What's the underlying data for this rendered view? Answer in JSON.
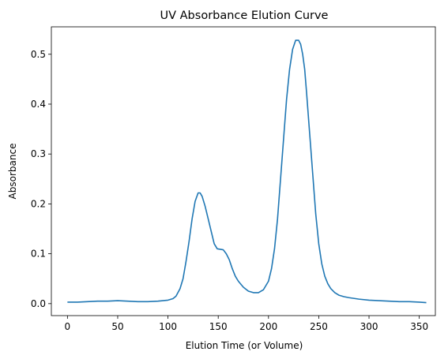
{
  "chart_data": {
    "type": "line",
    "title": "UV Absorbance Elution Curve",
    "xlabel": "Elution Time (or Volume)",
    "ylabel": "Absorbance",
    "xlim": [
      -16,
      366
    ],
    "ylim": [
      -0.024,
      0.555
    ],
    "xticks": [
      0,
      50,
      100,
      150,
      200,
      250,
      300,
      350
    ],
    "yticks": [
      0.0,
      0.1,
      0.2,
      0.3,
      0.4,
      0.5
    ],
    "ytick_labels": [
      "0.0",
      "0.1",
      "0.2",
      "0.3",
      "0.4",
      "0.5"
    ],
    "grid": false,
    "legend": "none",
    "series": [
      {
        "color": "#1f77b4",
        "x": [
          0,
          10,
          20,
          30,
          40,
          50,
          60,
          70,
          80,
          90,
          95,
          100,
          105,
          108,
          112,
          115,
          118,
          121,
          124,
          127,
          130,
          132,
          134,
          137,
          140,
          143,
          146,
          149,
          152,
          155,
          158,
          161,
          164,
          167,
          170,
          175,
          180,
          185,
          190,
          195,
          200,
          203,
          206,
          209,
          212,
          215,
          218,
          221,
          224,
          227,
          230,
          232,
          234,
          236,
          238,
          241,
          244,
          247,
          250,
          253,
          256,
          259,
          262,
          266,
          270,
          275,
          280,
          290,
          300,
          310,
          320,
          330,
          340,
          350,
          357
        ],
        "y": [
          0.003,
          0.003,
          0.004,
          0.005,
          0.005,
          0.006,
          0.005,
          0.004,
          0.004,
          0.005,
          0.006,
          0.007,
          0.01,
          0.015,
          0.03,
          0.05,
          0.085,
          0.125,
          0.17,
          0.205,
          0.222,
          0.222,
          0.215,
          0.195,
          0.17,
          0.145,
          0.12,
          0.11,
          0.109,
          0.108,
          0.1,
          0.088,
          0.07,
          0.055,
          0.045,
          0.033,
          0.025,
          0.022,
          0.022,
          0.028,
          0.045,
          0.07,
          0.11,
          0.17,
          0.25,
          0.33,
          0.41,
          0.47,
          0.51,
          0.528,
          0.528,
          0.52,
          0.5,
          0.47,
          0.42,
          0.34,
          0.26,
          0.18,
          0.12,
          0.08,
          0.055,
          0.04,
          0.03,
          0.022,
          0.017,
          0.014,
          0.012,
          0.009,
          0.007,
          0.006,
          0.005,
          0.004,
          0.004,
          0.003,
          0.002
        ]
      }
    ]
  }
}
